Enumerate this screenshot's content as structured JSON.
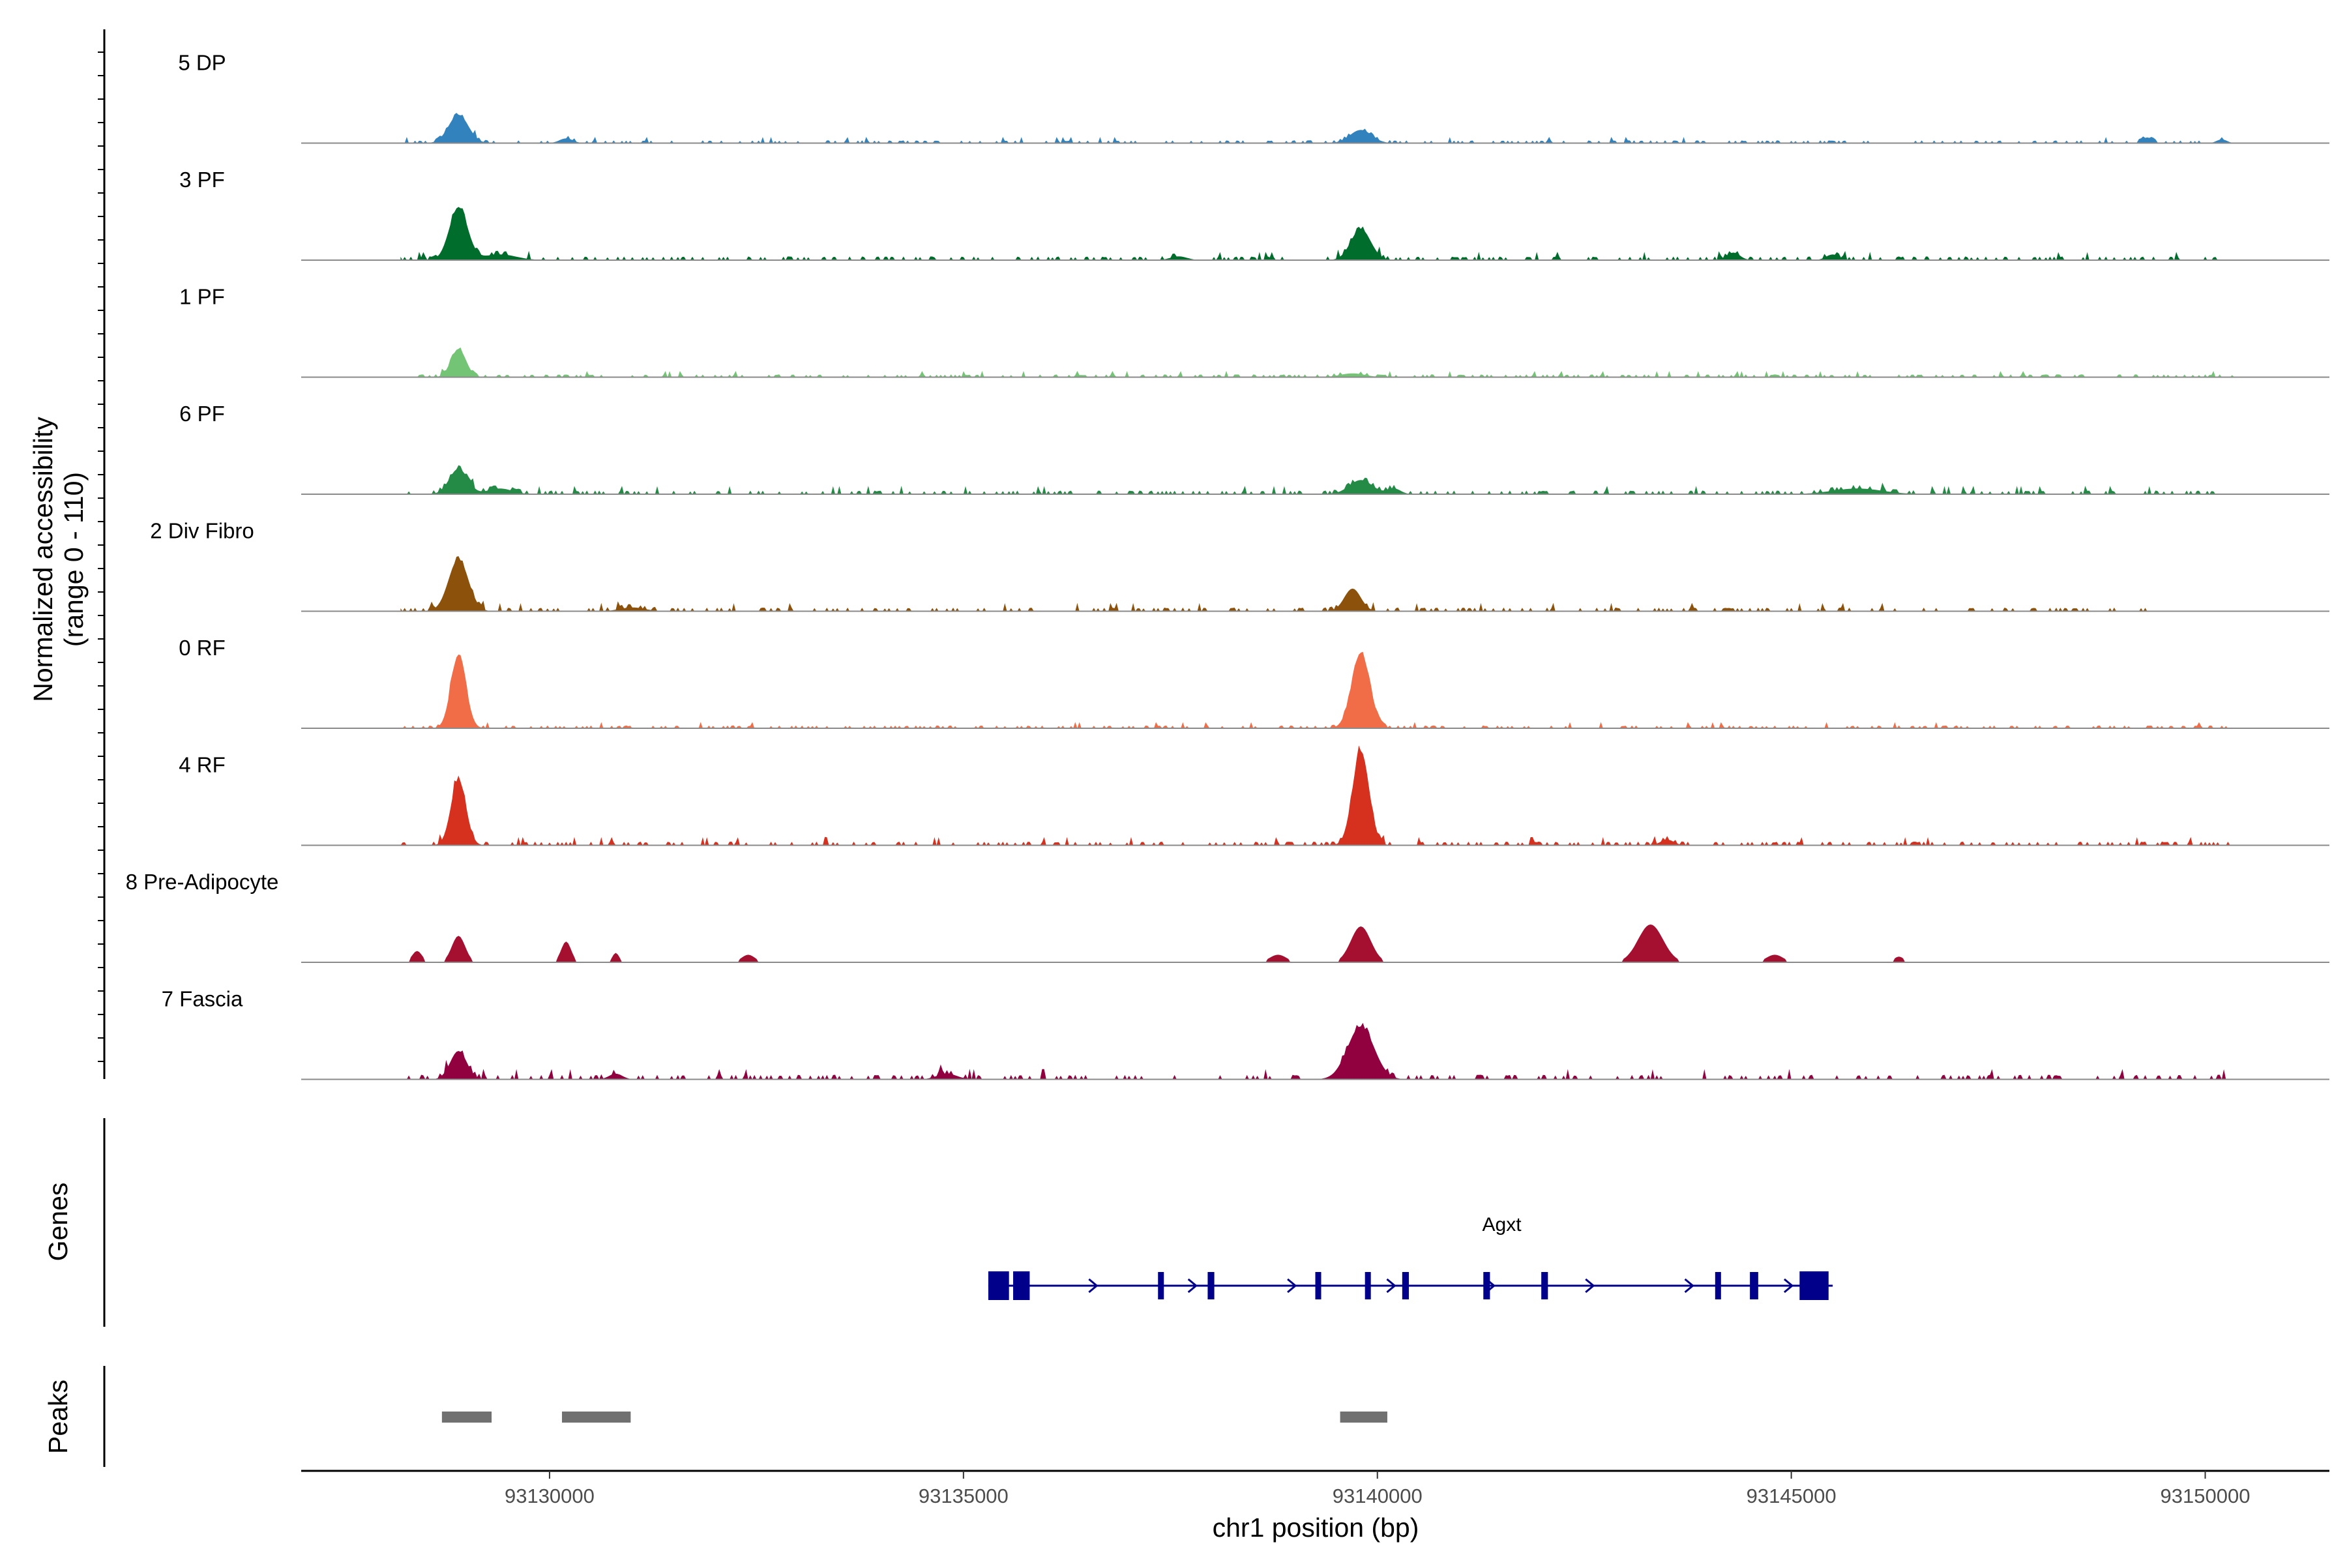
{
  "chart_data": {
    "type": "area",
    "title": "",
    "chromosome": "chr1",
    "x_range": [
      93127000,
      93151500
    ],
    "xlabel": "chr1 position (bp)",
    "x_ticks": [
      93130000,
      93135000,
      93140000,
      93145000,
      93150000
    ],
    "x_tick_labels": [
      "93130000",
      "93135000",
      "93140000",
      "93145000",
      "93150000"
    ],
    "ylabel_line1": "Normalized accessibility",
    "ylabel_line2": "(range 0 - 110)",
    "y_range": [
      0,
      110
    ],
    "series": [
      {
        "name": "5 DP",
        "color": "#3182bd",
        "peaks": [
          [
            93128900,
            30,
            120
          ],
          [
            93130200,
            5,
            80
          ],
          [
            93139800,
            14,
            130
          ],
          [
            93149300,
            6,
            60
          ],
          [
            93150200,
            4,
            60
          ]
        ],
        "noise": 3,
        "extent": [
          93128200,
          93150400
        ]
      },
      {
        "name": "3 PF",
        "color": "#006d2c",
        "peaks": [
          [
            93128900,
            56,
            110
          ],
          [
            93129400,
            6,
            200
          ],
          [
            93139800,
            33,
            120
          ],
          [
            93144300,
            8,
            80
          ],
          [
            93145500,
            6,
            80
          ],
          [
            93137600,
            4,
            100
          ]
        ],
        "noise": 4,
        "extent": [
          93128200,
          93150400
        ]
      },
      {
        "name": "1 PF",
        "color": "#74c476",
        "peaks": [
          [
            93128900,
            30,
            90
          ],
          [
            93139700,
            4,
            150
          ]
        ],
        "noise": 3,
        "extent": [
          93128200,
          93150400
        ]
      },
      {
        "name": "6 PF",
        "color": "#238b45",
        "peaks": [
          [
            93128900,
            27,
            110
          ],
          [
            93129400,
            6,
            150
          ],
          [
            93139800,
            15,
            140
          ],
          [
            93140200,
            6,
            80
          ],
          [
            93145800,
            6,
            300
          ]
        ],
        "noise": 4,
        "extent": [
          93128200,
          93150300
        ]
      },
      {
        "name": "2 Div Fibro",
        "color": "#8c510a",
        "peaks": [
          [
            93128900,
            55,
            120
          ],
          [
            93139700,
            24,
            100
          ],
          [
            93131000,
            4,
            150
          ]
        ],
        "noise": 4,
        "extent": [
          93128200,
          93149500
        ]
      },
      {
        "name": "0 RF",
        "color": "#f16d47",
        "peaks": [
          [
            93128900,
            78,
            90
          ],
          [
            93139800,
            80,
            110
          ]
        ],
        "noise": 3,
        "extent": [
          93128200,
          93150300
        ]
      },
      {
        "name": "4 RF",
        "color": "#d6301f",
        "peaks": [
          [
            93128900,
            70,
            90
          ],
          [
            93139800,
            100,
            100
          ],
          [
            93143500,
            6,
            80
          ]
        ],
        "noise": 4,
        "extent": [
          93128200,
          93150300
        ]
      },
      {
        "name": "8 Pre-Adipocyte",
        "color": "#a50f30",
        "peaks": [
          [
            93128900,
            28,
            80
          ],
          [
            93130200,
            22,
            60
          ],
          [
            93139800,
            38,
            120
          ],
          [
            93143300,
            40,
            150
          ],
          [
            93128400,
            12,
            60
          ],
          [
            93130800,
            10,
            40
          ],
          [
            93132400,
            8,
            80
          ],
          [
            93138800,
            8,
            100
          ],
          [
            93144800,
            8,
            100
          ],
          [
            93146300,
            6,
            60
          ]
        ],
        "noise": 0,
        "extent": [
          93128200,
          93146500
        ]
      },
      {
        "name": "7 Fascia",
        "color": "#91003f",
        "peaks": [
          [
            93128900,
            30,
            100
          ],
          [
            93139800,
            56,
            160
          ],
          [
            93130800,
            6,
            80
          ],
          [
            93134800,
            6,
            120
          ]
        ],
        "noise": 5,
        "extent": [
          93128200,
          93150300
        ]
      }
    ],
    "gene": {
      "name": "Agxt",
      "start": 93135300,
      "end": 93145500,
      "strand": "+",
      "color": "#00008b",
      "exons": [
        [
          93135300,
          93135550
        ],
        [
          93135600,
          93135800
        ],
        [
          93137350,
          93137420
        ],
        [
          93137950,
          93138030
        ],
        [
          93139250,
          93139320
        ],
        [
          93139850,
          93139920
        ],
        [
          93140300,
          93140380
        ],
        [
          93141280,
          93141360
        ],
        [
          93141980,
          93142060
        ],
        [
          93144080,
          93144150
        ],
        [
          93144500,
          93144600
        ],
        [
          93145100,
          93145450
        ]
      ]
    },
    "peaks_track": {
      "label": "Peaks",
      "color": "#707070",
      "regions": [
        [
          93128700,
          93129300
        ],
        [
          93130150,
          93130980
        ],
        [
          93139550,
          93140120
        ]
      ]
    },
    "genes_track_label": "Genes"
  }
}
